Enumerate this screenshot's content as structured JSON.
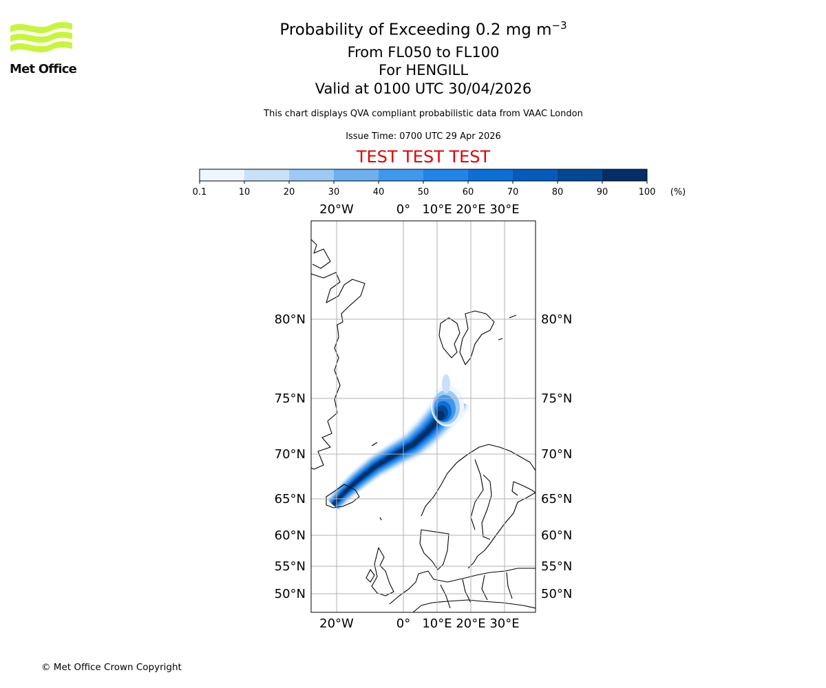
{
  "header": {
    "title_main": "Probability of Exceeding 0.2 mg m",
    "title_exponent": "−3",
    "title_level": "From FL050 to FL100",
    "title_volcano": "For HENGILL",
    "title_valid": "Valid at 0100 UTC 30/04/2026",
    "description": "This chart displays QVA compliant probabilistic data from VAAC London",
    "issue_time": "Issue Time: 0700 UTC 29 Apr 2026",
    "test_banner": "TEST TEST TEST"
  },
  "logo": {
    "text": "Met Office",
    "color": "#c8f53c"
  },
  "colorbar": {
    "ticks": [
      "0.1",
      "10",
      "20",
      "30",
      "40",
      "50",
      "60",
      "70",
      "80",
      "90",
      "100"
    ],
    "unit": "(%)",
    "colors": [
      "#f0f6ff",
      "#c8e1fa",
      "#9ccaf5",
      "#6cb0f2",
      "#3f98ef",
      "#1f85eb",
      "#0b6fd8",
      "#045bbc",
      "#034795",
      "#022f67"
    ]
  },
  "map": {
    "lon_labels": [
      "20°W",
      "0°",
      "10°E",
      "20°E",
      "30°E"
    ],
    "lat_labels": [
      "80°N",
      "75°N",
      "70°N",
      "65°N",
      "60°N",
      "55°N",
      "50°N"
    ],
    "plume_source": "HENGILL",
    "plume_direction": "north-east",
    "plume_max_probability_pct": 100
  },
  "footer": {
    "copyright": "© Met Office Crown Copyright"
  }
}
